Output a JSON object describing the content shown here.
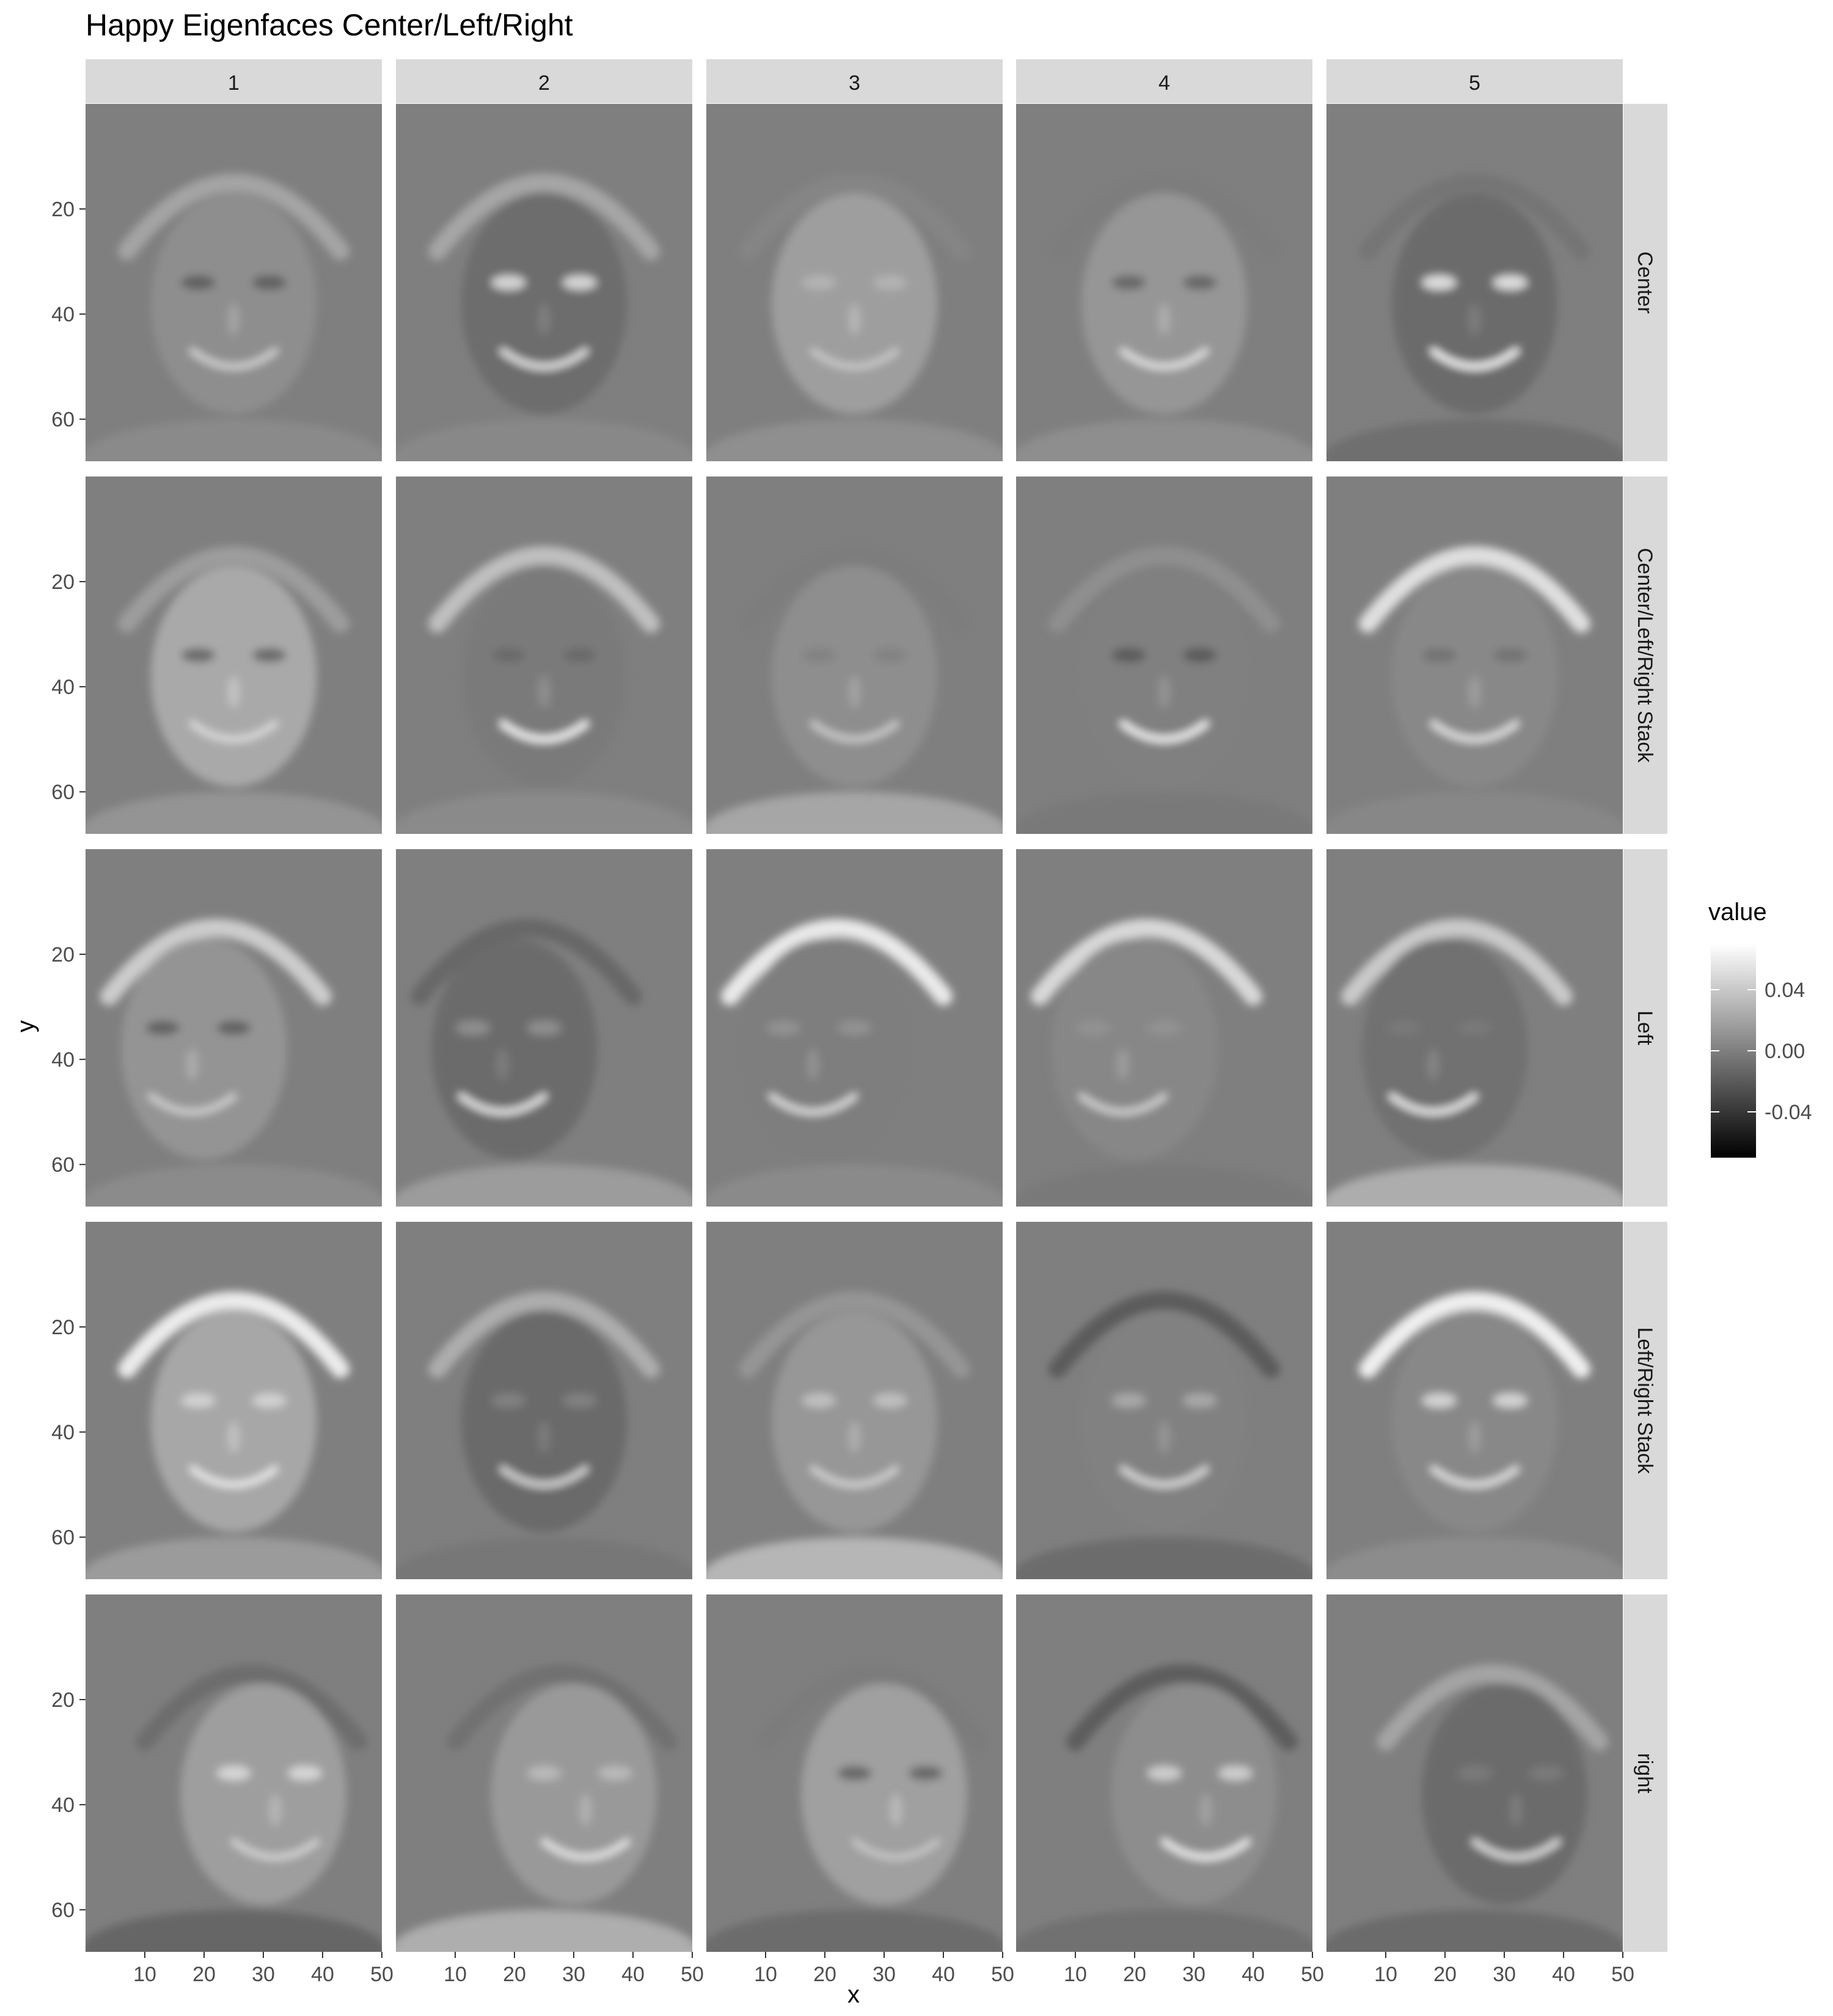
{
  "chart_data": {
    "type": "heatmap",
    "title": "Happy Eigenfaces Center/Left/Right",
    "xlabel": "x",
    "ylabel": "y",
    "xlim": [
      0,
      50
    ],
    "ylim": [
      68,
      0
    ],
    "x_ticks": [
      10,
      20,
      30,
      40,
      50
    ],
    "y_ticks": [
      20,
      40,
      60
    ],
    "columns": [
      "1",
      "2",
      "3",
      "4",
      "5"
    ],
    "rows": [
      "Center",
      "Center/Left/Right Stack",
      "Left",
      "Left/Right Stack",
      "right"
    ],
    "legend": {
      "title": "value",
      "position": "right",
      "breaks": [
        0.04,
        0.0,
        -0.04
      ],
      "labels": [
        "0.04",
        "0.00",
        "-0.04"
      ],
      "range": [
        -0.07,
        0.07
      ]
    },
    "grid": false,
    "colors": {
      "strip_background": "#d9d9d9",
      "panel_background": "#7f7f7f",
      "low": "#000000",
      "high": "#ffffff"
    }
  }
}
